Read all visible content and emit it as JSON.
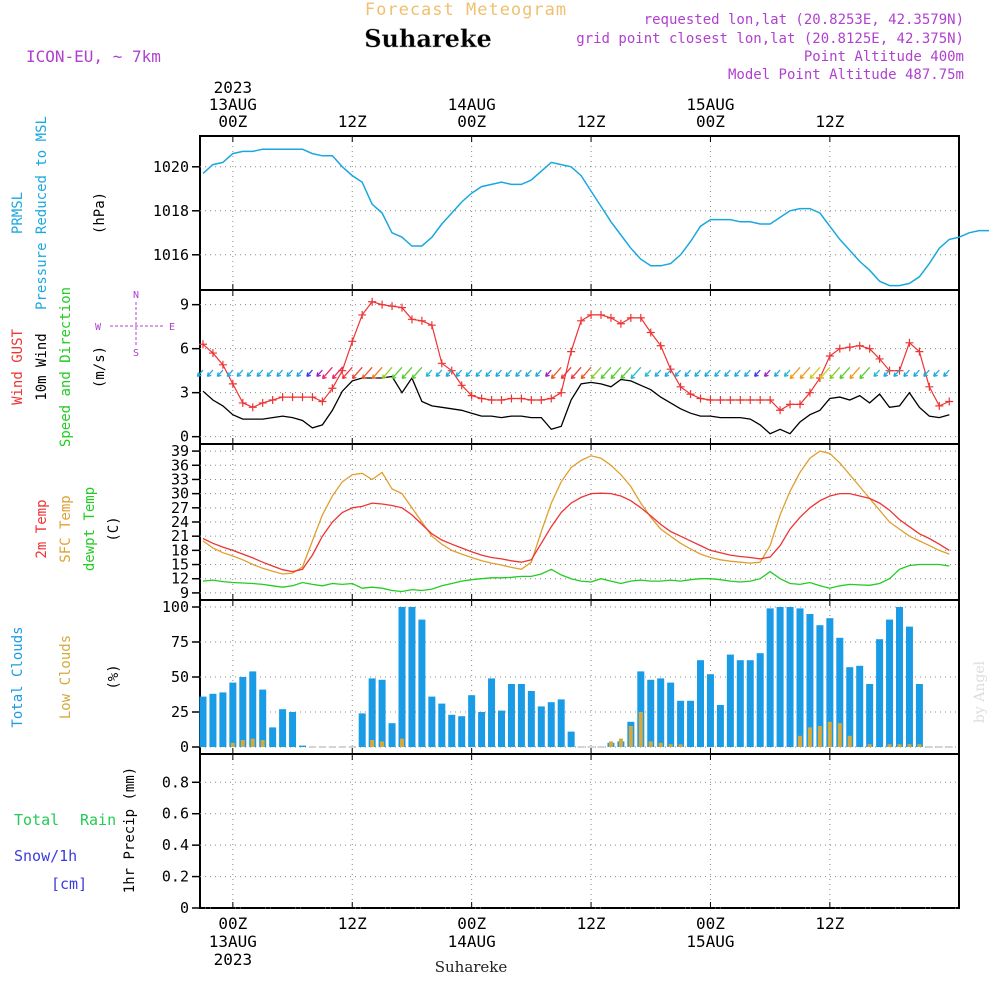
{
  "header": {
    "forecast_title": "Forecast Meteogram",
    "location": "Suhareke",
    "model": "ICON-EU, ~ 7km",
    "requested": "requested lon,lat (20.8253E, 42.3579N)",
    "grid_point": "grid point closest lon,lat (20.8125E, 42.375N)",
    "point_alt": "Point Altitude 400m",
    "model_alt": "Model Point Altitude 487.75m",
    "footer_location": "Suhareke",
    "watermark": "by Angel"
  },
  "time_axis": {
    "top_labels": [
      {
        "step": 3,
        "lines": [
          "2023",
          "13AUG",
          "00Z"
        ]
      },
      {
        "step": 15,
        "lines": [
          "12Z"
        ]
      },
      {
        "step": 27,
        "lines": [
          "14AUG",
          "00Z"
        ]
      },
      {
        "step": 39,
        "lines": [
          "12Z"
        ]
      },
      {
        "step": 51,
        "lines": [
          "15AUG",
          "00Z"
        ]
      },
      {
        "step": 63,
        "lines": [
          "12Z"
        ]
      }
    ],
    "bottom_labels": [
      {
        "step": 3,
        "lines": [
          "00Z",
          "13AUG",
          "2023"
        ]
      },
      {
        "step": 15,
        "lines": [
          "12Z"
        ]
      },
      {
        "step": 27,
        "lines": [
          "00Z",
          "14AUG"
        ]
      },
      {
        "step": 39,
        "lines": [
          "12Z"
        ]
      },
      {
        "step": 51,
        "lines": [
          "00Z",
          "15AUG"
        ]
      },
      {
        "step": 63,
        "lines": [
          "12Z"
        ]
      }
    ]
  },
  "panels": {
    "pressure": {
      "labels": [
        "PRMSL",
        "Pressure Reduced to MSL"
      ],
      "unit": "(hPa)"
    },
    "wind": {
      "labels": [
        "Wind GUST",
        "10m Wind",
        "Speed and Direction"
      ],
      "unit": "(m/s)",
      "compass": {
        "n": "N",
        "s": "S",
        "w": "W",
        "e": "E"
      }
    },
    "temp": {
      "labels": [
        "2m Temp",
        "SFC Temp",
        "dewpt Temp"
      ],
      "unit": "(C)"
    },
    "clouds": {
      "labels": [
        "Total Clouds",
        "Low Clouds"
      ],
      "unit": "(%)"
    },
    "precip": {
      "labels": [
        "Total",
        "Rain",
        "Snow/1h",
        "[cm]"
      ],
      "unit": "1hr Precip (mm)"
    }
  },
  "colors": {
    "pressure": "#1aa7e0",
    "gust": "#ee3333",
    "wind": "#000000",
    "temp2m": "#ee3333",
    "sfc": "#e0a030",
    "dewpt": "#22cc22",
    "total_clouds": "#1a9be6",
    "low_clouds": "#d4aa3c",
    "title_orange": "#f0c070",
    "purple": "#b040d0",
    "rain": "#22cc55",
    "snow": "#3b3bdd"
  },
  "chart_data": [
    {
      "type": "line",
      "name": "pressure",
      "x_unit": "hours from 13AUG 00Z (3-hourly step index, step 3 = 13AUG 00Z)",
      "ylim": [
        1014.4,
        1021.4
      ],
      "yticks": [
        1016,
        1018,
        1020
      ],
      "series": [
        {
          "name": "PRMSL",
          "values": [
            1019.7,
            1020.1,
            1020.2,
            1020.6,
            1020.7,
            1020.7,
            1020.8,
            1020.8,
            1020.8,
            1020.8,
            1020.8,
            1020.6,
            1020.5,
            1020.5,
            1020.0,
            1019.6,
            1019.3,
            1018.3,
            1017.9,
            1017.0,
            1016.8,
            1016.4,
            1016.4,
            1016.8,
            1017.4,
            1017.9,
            1018.4,
            1018.8,
            1019.1,
            1019.2,
            1019.3,
            1019.2,
            1019.2,
            1019.4,
            1019.8,
            1020.2,
            1020.1,
            1020.0,
            1019.6,
            1018.9,
            1018.2,
            1017.5,
            1016.9,
            1016.3,
            1015.8,
            1015.5,
            1015.5,
            1015.6,
            1016.0,
            1016.6,
            1017.3,
            1017.6,
            1017.6,
            1017.6,
            1017.5,
            1017.5,
            1017.4,
            1017.4,
            1017.7,
            1018.0,
            1018.1,
            1018.1,
            1017.9,
            1017.3,
            1016.7,
            1016.2,
            1015.7,
            1015.3,
            1014.8,
            1014.6,
            1014.6,
            1014.7,
            1015.0,
            1015.6,
            1016.3,
            1016.7,
            1016.8,
            1017.0,
            1017.1,
            1017.1
          ]
        }
      ]
    },
    {
      "type": "line",
      "name": "wind",
      "ylim": [
        -0.5,
        10
      ],
      "yticks": [
        0,
        3,
        6,
        9
      ],
      "series": [
        {
          "name": "Wind GUST",
          "values": [
            6.3,
            5.7,
            4.9,
            3.6,
            2.3,
            2.0,
            2.3,
            2.5,
            2.7,
            2.7,
            2.7,
            2.7,
            2.4,
            3.3,
            4.5,
            6.5,
            8.3,
            9.2,
            9.0,
            8.9,
            8.8,
            8.0,
            7.9,
            7.6,
            5.0,
            4.5,
            3.5,
            2.8,
            2.6,
            2.5,
            2.5,
            2.6,
            2.6,
            2.5,
            2.5,
            2.6,
            3.0,
            5.8,
            7.9,
            8.3,
            8.3,
            8.1,
            7.7,
            8.1,
            8.1,
            7.1,
            6.2,
            4.6,
            3.4,
            2.9,
            2.6,
            2.5,
            2.5,
            2.5,
            2.5,
            2.5,
            2.5,
            2.5,
            1.8,
            2.2,
            2.2,
            3.0,
            4.0,
            5.5,
            6.0,
            6.1,
            6.2,
            6.0,
            5.3,
            4.5,
            4.5,
            6.4,
            5.8,
            3.4,
            2.1,
            2.4
          ]
        },
        {
          "name": "10m Wind",
          "values": [
            3.1,
            2.5,
            2.1,
            1.5,
            1.2,
            1.2,
            1.2,
            1.3,
            1.4,
            1.3,
            1.1,
            0.6,
            0.8,
            1.8,
            3.1,
            3.8,
            4.0,
            4.0,
            4.0,
            4.1,
            3.0,
            4.0,
            2.4,
            2.1,
            2.0,
            1.9,
            1.8,
            1.6,
            1.4,
            1.4,
            1.3,
            1.4,
            1.4,
            1.3,
            1.3,
            0.5,
            0.7,
            2.5,
            3.6,
            3.7,
            3.6,
            3.4,
            3.9,
            3.8,
            3.5,
            3.2,
            2.7,
            2.3,
            1.9,
            1.6,
            1.4,
            1.4,
            1.3,
            1.3,
            1.3,
            1.2,
            0.8,
            0.2,
            0.5,
            0.2,
            1.0,
            1.5,
            1.8,
            2.6,
            2.7,
            2.5,
            2.8,
            2.3,
            2.9,
            2.0,
            2.1,
            3.0,
            2.0,
            1.4,
            1.3,
            1.5
          ]
        }
      ]
    },
    {
      "type": "line",
      "name": "temperature",
      "ylim": [
        7.5,
        40.5
      ],
      "yticks": [
        9,
        12,
        15,
        18,
        21,
        24,
        27,
        30,
        33,
        36,
        39
      ],
      "series": [
        {
          "name": "2m Temp",
          "values": [
            20.5,
            19.5,
            18.7,
            18.0,
            17.2,
            16.4,
            15.5,
            14.7,
            13.9,
            13.5,
            14.0,
            17.0,
            21.0,
            24.0,
            26.0,
            27.0,
            27.3,
            28.0,
            27.8,
            27.5,
            27.0,
            25.5,
            23.5,
            21.5,
            20.2,
            19.3,
            18.5,
            17.7,
            17.0,
            16.5,
            16.2,
            15.8,
            15.5,
            16.0,
            19.5,
            23.0,
            26.0,
            28.0,
            29.2,
            30.0,
            30.1,
            30.0,
            29.5,
            28.5,
            27.0,
            25.3,
            23.5,
            22.0,
            21.0,
            20.0,
            19.0,
            18.0,
            17.5,
            17.0,
            16.7,
            16.5,
            16.2,
            16.6,
            19.0,
            22.5,
            25.0,
            27.0,
            28.5,
            29.5,
            30.0,
            30.0,
            29.5,
            29.0,
            28.0,
            26.5,
            24.5,
            23.0,
            21.5,
            20.5,
            19.3,
            18.0
          ]
        },
        {
          "name": "SFC Temp",
          "values": [
            20.0,
            18.5,
            17.5,
            16.8,
            16.0,
            15.0,
            14.2,
            13.6,
            13.0,
            13.2,
            14.5,
            20.0,
            25.5,
            29.5,
            32.5,
            34.0,
            34.3,
            33.0,
            34.5,
            31.0,
            30.0,
            27.0,
            24.0,
            21.0,
            19.3,
            18.0,
            17.2,
            16.5,
            15.8,
            15.3,
            14.9,
            14.4,
            14.0,
            15.5,
            22.0,
            28.0,
            32.5,
            35.5,
            37.0,
            38.0,
            37.5,
            36.0,
            34.0,
            31.5,
            28.0,
            25.0,
            22.5,
            21.0,
            19.5,
            18.3,
            17.2,
            16.5,
            16.0,
            15.7,
            15.5,
            15.3,
            15.5,
            19.0,
            25.5,
            30.5,
            34.5,
            37.5,
            39.0,
            38.5,
            36.5,
            34.0,
            31.5,
            29.0,
            26.5,
            24.0,
            22.5,
            21.0,
            20.0,
            19.0,
            18.0,
            17.2
          ]
        },
        {
          "name": "dewpt Temp",
          "values": [
            11.5,
            11.7,
            11.4,
            11.2,
            11.1,
            11.0,
            10.8,
            10.5,
            10.2,
            10.5,
            11.2,
            10.8,
            10.5,
            11.0,
            10.8,
            11.0,
            10.0,
            10.2,
            10.0,
            9.5,
            9.3,
            9.7,
            9.5,
            9.8,
            10.5,
            11.0,
            11.5,
            11.8,
            12.0,
            12.2,
            12.2,
            12.3,
            12.5,
            12.5,
            13.0,
            14.0,
            12.8,
            12.0,
            11.5,
            11.3,
            12.0,
            11.5,
            11.0,
            11.5,
            11.7,
            11.5,
            11.5,
            11.7,
            11.5,
            11.8,
            12.0,
            12.0,
            11.8,
            11.5,
            11.3,
            11.5,
            12.0,
            13.5,
            12.0,
            11.0,
            10.8,
            11.2,
            10.5,
            10.0,
            10.5,
            10.8,
            10.7,
            10.6,
            11.0,
            12.0,
            14.0,
            14.8,
            15.0,
            15.0,
            15.0,
            14.7
          ]
        }
      ]
    },
    {
      "type": "bar",
      "name": "clouds",
      "ylim": [
        -5,
        105
      ],
      "yticks": [
        0,
        25,
        50,
        75,
        100
      ],
      "series": [
        {
          "name": "Total Clouds",
          "values": [
            36,
            38,
            39,
            46,
            50,
            54,
            41,
            14,
            27,
            25,
            1,
            0,
            0,
            0,
            0,
            0,
            24,
            49,
            48,
            17,
            100,
            100,
            91,
            36,
            31,
            23,
            22,
            37,
            25,
            49,
            26,
            45,
            45,
            40,
            29,
            32,
            34,
            11,
            0,
            0,
            0,
            3,
            4,
            18,
            54,
            48,
            49,
            46,
            33,
            33,
            62,
            52,
            30,
            66,
            62,
            62,
            67,
            99,
            100,
            100,
            99,
            95,
            87,
            92,
            78,
            57,
            58,
            45,
            77,
            91,
            100,
            86,
            45,
            0,
            0,
            0
          ]
        },
        {
          "name": "Low Clouds",
          "values": [
            0,
            0,
            0,
            3,
            5,
            6,
            5,
            0,
            0,
            0,
            0,
            0,
            0,
            0,
            0,
            0,
            0,
            5,
            4,
            0,
            6,
            0,
            0,
            0,
            0,
            0,
            0,
            0,
            0,
            0,
            0,
            0,
            0,
            0,
            0,
            0,
            0,
            0,
            0,
            0,
            0,
            4,
            6,
            15,
            25,
            4,
            3,
            2,
            2,
            0,
            0,
            0,
            0,
            0,
            0,
            0,
            0,
            0,
            0,
            0,
            8,
            14,
            15,
            18,
            17,
            8,
            0,
            2,
            0,
            2,
            2,
            2,
            2,
            0,
            0,
            0
          ]
        }
      ]
    },
    {
      "type": "bar",
      "name": "precip",
      "ylim": [
        0,
        0.98
      ],
      "yticks": [
        0,
        0.2,
        0.4,
        0.6,
        0.8
      ],
      "series": [
        {
          "name": "Total Rain",
          "values": []
        }
      ]
    }
  ]
}
